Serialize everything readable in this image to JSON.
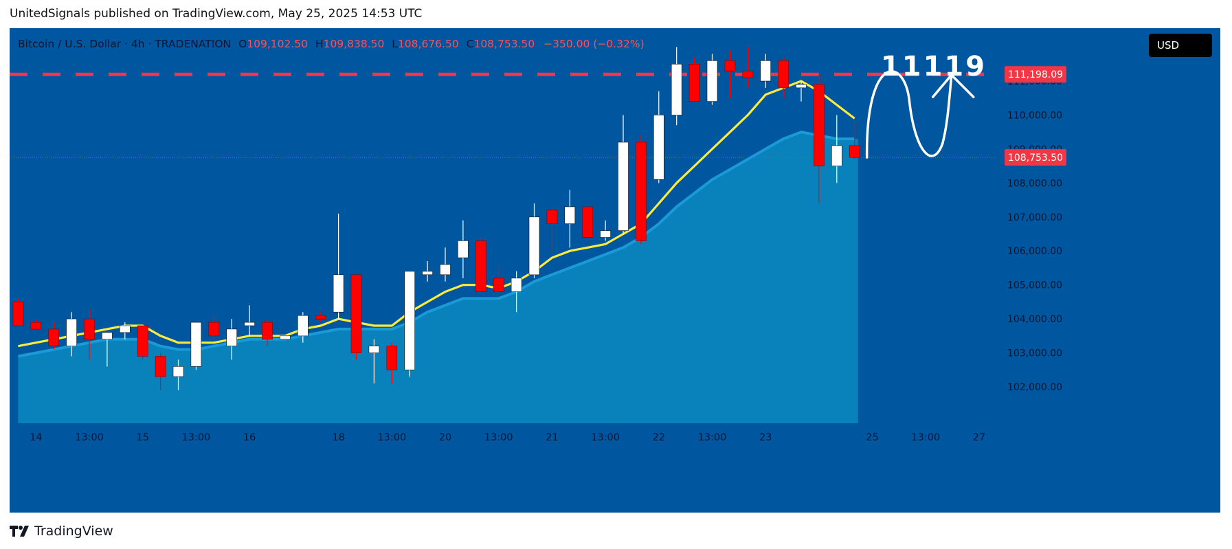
{
  "header": {
    "published_by": "UnitedSignals published on TradingView.com, May 25, 2025 14:53 UTC"
  },
  "legend": {
    "symbol": "Bitcoin / U.S. Dollar · 4h · TRADENATION",
    "open_label": "O",
    "open": "109,102.50",
    "high_label": "H",
    "high": "109,838.50",
    "low_label": "L",
    "low": "108,676.50",
    "close_label": "C",
    "close": "108,753.50",
    "change": "−350.00 (−0.32%)"
  },
  "currency_button": "USD",
  "annotation_text": "11119",
  "footer": {
    "brand": "TradingView"
  },
  "chart_data": {
    "type": "candlestick",
    "timeframe": "4h",
    "ylim": [
      101800,
      112900
    ],
    "price_ticks": [
      "102,000.00",
      "103,000.00",
      "104,000.00",
      "105,000.00",
      "106,000.00",
      "107,000.00",
      "108,000.00",
      "109,000.00",
      "110,000.00",
      "111,000.00"
    ],
    "price_tick_values": [
      102000,
      103000,
      104000,
      105000,
      106000,
      107000,
      108000,
      109000,
      110000,
      111000
    ],
    "x_ticks": [
      {
        "label": "14",
        "i": 1
      },
      {
        "label": "13:00",
        "i": 4
      },
      {
        "label": "15",
        "i": 7
      },
      {
        "label": "13:00",
        "i": 10
      },
      {
        "label": "16",
        "i": 13
      },
      {
        "label": "18",
        "i": 18
      },
      {
        "label": "13:00",
        "i": 21
      },
      {
        "label": "20",
        "i": 24
      },
      {
        "label": "13:00",
        "i": 27
      },
      {
        "label": "21",
        "i": 30
      },
      {
        "label": "13:00",
        "i": 33
      },
      {
        "label": "22",
        "i": 36
      },
      {
        "label": "13:00",
        "i": 39
      },
      {
        "label": "23",
        "i": 42
      },
      {
        "label": "25",
        "i": 48
      },
      {
        "label": "13:00",
        "i": 51
      },
      {
        "label": "27",
        "i": 54
      }
    ],
    "resistance": {
      "value": 111198.09,
      "label": "111,198.09",
      "style": "dashed",
      "color": "#f23645"
    },
    "last_price": {
      "value": 108753.5,
      "label": "108,753.50",
      "color": "#f23645"
    },
    "colors": {
      "up": "#ffffff",
      "down": "#ff0000",
      "ma_fast": "#ffeb3b",
      "ma_slow": "#1e90c8",
      "background": "#0156a0"
    },
    "candles": [
      {
        "o": 104500,
        "h": 104600,
        "l": 103800,
        "c": 103800
      },
      {
        "o": 103900,
        "h": 104000,
        "l": 103700,
        "c": 103700
      },
      {
        "o": 103700,
        "h": 103900,
        "l": 103100,
        "c": 103200
      },
      {
        "o": 103200,
        "h": 104200,
        "l": 102900,
        "c": 104000
      },
      {
        "o": 104000,
        "h": 104300,
        "l": 102800,
        "c": 103400
      },
      {
        "o": 103400,
        "h": 103600,
        "l": 102600,
        "c": 103600
      },
      {
        "o": 103600,
        "h": 103900,
        "l": 103400,
        "c": 103800
      },
      {
        "o": 103800,
        "h": 103800,
        "l": 102800,
        "c": 102900
      },
      {
        "o": 102900,
        "h": 103000,
        "l": 101900,
        "c": 102300
      },
      {
        "o": 102300,
        "h": 102800,
        "l": 101900,
        "c": 102600
      },
      {
        "o": 102600,
        "h": 103900,
        "l": 102500,
        "c": 103900
      },
      {
        "o": 103900,
        "h": 104100,
        "l": 103400,
        "c": 103500
      },
      {
        "o": 103200,
        "h": 104000,
        "l": 102800,
        "c": 103700
      },
      {
        "o": 103800,
        "h": 104400,
        "l": 103500,
        "c": 103900
      },
      {
        "o": 103900,
        "h": 104000,
        "l": 103200,
        "c": 103400
      },
      {
        "o": 103400,
        "h": 103500,
        "l": 103400,
        "c": 103500
      },
      {
        "o": 103500,
        "h": 104200,
        "l": 103300,
        "c": 104100
      },
      {
        "o": 104100,
        "h": 104200,
        "l": 103900,
        "c": 104000
      },
      {
        "o": 104200,
        "h": 107100,
        "l": 104000,
        "c": 105300
      },
      {
        "o": 105300,
        "h": 105300,
        "l": 102800,
        "c": 103000
      },
      {
        "o": 103000,
        "h": 103400,
        "l": 102100,
        "c": 103200
      },
      {
        "o": 103200,
        "h": 103300,
        "l": 102100,
        "c": 102500
      },
      {
        "o": 102500,
        "h": 105400,
        "l": 102300,
        "c": 105400
      },
      {
        "o": 105300,
        "h": 105700,
        "l": 105100,
        "c": 105400
      },
      {
        "o": 105300,
        "h": 106100,
        "l": 105100,
        "c": 105600
      },
      {
        "o": 105800,
        "h": 106900,
        "l": 105200,
        "c": 106300
      },
      {
        "o": 106300,
        "h": 106400,
        "l": 104900,
        "c": 104800
      },
      {
        "o": 105200,
        "h": 105500,
        "l": 104800,
        "c": 104800
      },
      {
        "o": 104800,
        "h": 105400,
        "l": 104200,
        "c": 105200
      },
      {
        "o": 105300,
        "h": 107400,
        "l": 105200,
        "c": 107000
      },
      {
        "o": 107200,
        "h": 107300,
        "l": 105900,
        "c": 106800
      },
      {
        "o": 106800,
        "h": 107800,
        "l": 106100,
        "c": 107300
      },
      {
        "o": 107300,
        "h": 107300,
        "l": 106300,
        "c": 106400
      },
      {
        "o": 106400,
        "h": 106900,
        "l": 106300,
        "c": 106600
      },
      {
        "o": 106600,
        "h": 110000,
        "l": 106500,
        "c": 109200
      },
      {
        "o": 109200,
        "h": 109400,
        "l": 106200,
        "c": 106300
      },
      {
        "o": 108100,
        "h": 110700,
        "l": 108000,
        "c": 110000
      },
      {
        "o": 110000,
        "h": 112000,
        "l": 109700,
        "c": 111500
      },
      {
        "o": 111500,
        "h": 111700,
        "l": 110400,
        "c": 110400
      },
      {
        "o": 110400,
        "h": 111800,
        "l": 110300,
        "c": 111600
      },
      {
        "o": 111600,
        "h": 111900,
        "l": 110500,
        "c": 111300
      },
      {
        "o": 111300,
        "h": 112000,
        "l": 110800,
        "c": 111100
      },
      {
        "o": 111000,
        "h": 111800,
        "l": 110800,
        "c": 111600
      },
      {
        "o": 111600,
        "h": 111700,
        "l": 110500,
        "c": 110800
      },
      {
        "o": 110800,
        "h": 111000,
        "l": 110400,
        "c": 110900
      },
      {
        "o": 110900,
        "h": 111200,
        "l": 107400,
        "c": 108500
      },
      {
        "o": 108500,
        "h": 110000,
        "l": 108000,
        "c": 109100
      },
      {
        "o": 109100,
        "h": 109800,
        "l": 108700,
        "c": 108750
      }
    ],
    "ma_fast": [
      103200,
      103300,
      103400,
      103500,
      103600,
      103700,
      103800,
      103800,
      103500,
      103300,
      103300,
      103300,
      103400,
      103500,
      103500,
      103500,
      103700,
      103800,
      104000,
      103900,
      103800,
      103800,
      104200,
      104500,
      104800,
      105000,
      105000,
      104900,
      105100,
      105400,
      105800,
      106000,
      106100,
      106200,
      106500,
      106800,
      107400,
      108000,
      108500,
      109000,
      109500,
      110000,
      110600,
      110800,
      111000,
      110700,
      110300,
      109900
    ],
    "ma_slow": [
      102900,
      103000,
      103100,
      103200,
      103300,
      103400,
      103400,
      103400,
      103200,
      103100,
      103100,
      103200,
      103300,
      103400,
      103400,
      103400,
      103500,
      103600,
      103700,
      103700,
      103700,
      103700,
      103900,
      104200,
      104400,
      104600,
      104600,
      104600,
      104800,
      105100,
      105300,
      105500,
      105700,
      105900,
      106100,
      106400,
      106800,
      107300,
      107700,
      108100,
      108400,
      108700,
      109000,
      109300,
      109500,
      109400,
      109300,
      109300
    ],
    "forecast_path": "wave from 108,753.50 rising to ~111,000, falling to ~108,800, then rising with arrow toward 111,198.09"
  }
}
